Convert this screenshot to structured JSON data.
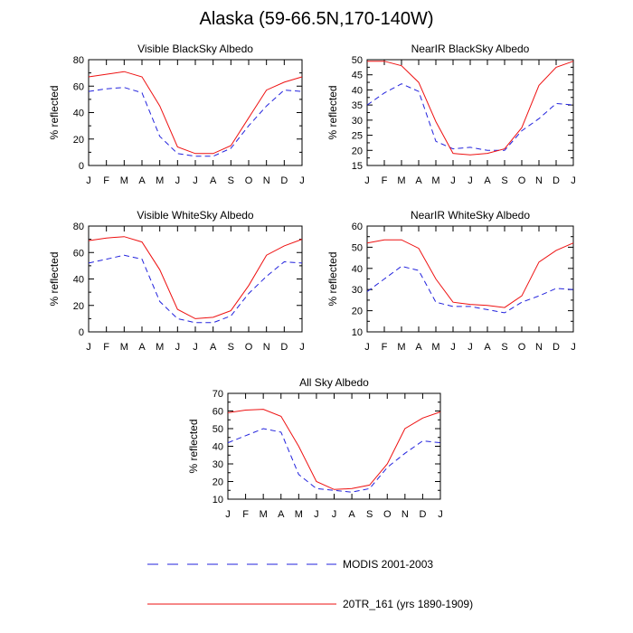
{
  "title": "Alaska (59-66.5N,170-140W)",
  "colors": {
    "modis": "#2222dd",
    "model": "#ee1111"
  },
  "legend": {
    "modis_label": "MODIS 2001-2003",
    "model_label": "20TR_161 (yrs 1890-1909)"
  },
  "chart_data": [
    {
      "type": "line",
      "title": "Visible BlackSky Albedo",
      "ylabel": "% reflected",
      "categories": [
        "J",
        "F",
        "M",
        "A",
        "M",
        "J",
        "J",
        "A",
        "S",
        "O",
        "N",
        "D",
        "J"
      ],
      "ylim": [
        0,
        80
      ],
      "yticks": [
        0,
        20,
        40,
        60,
        80
      ],
      "series": [
        {
          "name": "MODIS 2001-2003",
          "style": "dashed",
          "values": [
            56,
            58,
            59,
            55,
            22,
            9,
            7,
            7,
            13,
            30,
            45,
            57,
            56
          ]
        },
        {
          "name": "20TR_161 (yrs 1890-1909)",
          "style": "solid",
          "values": [
            67,
            69,
            71,
            67,
            45,
            14,
            9,
            9,
            15,
            36,
            57,
            63,
            67
          ]
        }
      ]
    },
    {
      "type": "line",
      "title": "NearIR BlackSky Albedo",
      "ylabel": "% reflected",
      "categories": [
        "J",
        "F",
        "M",
        "A",
        "M",
        "J",
        "J",
        "A",
        "S",
        "O",
        "N",
        "D",
        "J"
      ],
      "ylim": [
        15,
        50
      ],
      "yticks": [
        15,
        20,
        25,
        30,
        35,
        40,
        45,
        50
      ],
      "series": [
        {
          "name": "MODIS 2001-2003",
          "style": "dashed",
          "values": [
            35,
            39,
            42,
            39.5,
            23,
            20.5,
            21,
            20,
            20,
            26.5,
            30.5,
            35.5,
            35
          ]
        },
        {
          "name": "20TR_161 (yrs 1890-1909)",
          "style": "solid",
          "values": [
            49.5,
            49.5,
            48,
            42.5,
            29.5,
            19,
            18.5,
            19,
            20.5,
            27.5,
            41.5,
            47.5,
            49.5
          ]
        }
      ]
    },
    {
      "type": "line",
      "title": "Visible WhiteSky Albedo",
      "ylabel": "% reflected",
      "categories": [
        "J",
        "F",
        "M",
        "A",
        "M",
        "J",
        "J",
        "A",
        "S",
        "O",
        "N",
        "D",
        "J"
      ],
      "ylim": [
        0,
        80
      ],
      "yticks": [
        0,
        20,
        40,
        60,
        80
      ],
      "series": [
        {
          "name": "MODIS 2001-2003",
          "style": "dashed",
          "values": [
            52,
            55,
            58,
            55,
            23,
            10,
            7,
            7,
            12,
            29,
            42,
            53,
            52
          ]
        },
        {
          "name": "20TR_161 (yrs 1890-1909)",
          "style": "solid",
          "values": [
            69,
            71,
            72,
            68,
            47,
            17,
            10,
            11,
            16,
            35,
            58,
            65,
            70
          ]
        }
      ]
    },
    {
      "type": "line",
      "title": "NearIR WhiteSky Albedo",
      "ylabel": "% reflected",
      "categories": [
        "J",
        "F",
        "M",
        "A",
        "M",
        "J",
        "J",
        "A",
        "S",
        "O",
        "N",
        "D",
        "J"
      ],
      "ylim": [
        10,
        60
      ],
      "yticks": [
        10,
        20,
        30,
        40,
        50,
        60
      ],
      "series": [
        {
          "name": "MODIS 2001-2003",
          "style": "dashed",
          "values": [
            29,
            35,
            41,
            39,
            24,
            22,
            22,
            20.5,
            19,
            24,
            27,
            30.5,
            30
          ]
        },
        {
          "name": "20TR_161 (yrs 1890-1909)",
          "style": "solid",
          "values": [
            52,
            53.5,
            53.5,
            49.5,
            35,
            24,
            23,
            22.5,
            21.5,
            27,
            43,
            48.5,
            52
          ]
        }
      ]
    },
    {
      "type": "line",
      "title": "All Sky Albedo",
      "ylabel": "% reflected",
      "categories": [
        "J",
        "F",
        "M",
        "A",
        "M",
        "J",
        "J",
        "A",
        "S",
        "O",
        "N",
        "D",
        "J"
      ],
      "ylim": [
        10,
        70
      ],
      "yticks": [
        10,
        20,
        30,
        40,
        50,
        60,
        70
      ],
      "series": [
        {
          "name": "MODIS 2001-2003",
          "style": "dashed",
          "values": [
            42,
            46,
            50,
            48,
            24,
            16,
            15,
            14,
            16,
            28,
            36,
            43,
            42
          ]
        },
        {
          "name": "20TR_161 (yrs 1890-1909)",
          "style": "solid",
          "values": [
            59,
            60.5,
            61,
            57,
            40,
            20,
            15.5,
            16,
            18,
            30,
            50,
            56,
            59.5
          ]
        }
      ]
    }
  ]
}
